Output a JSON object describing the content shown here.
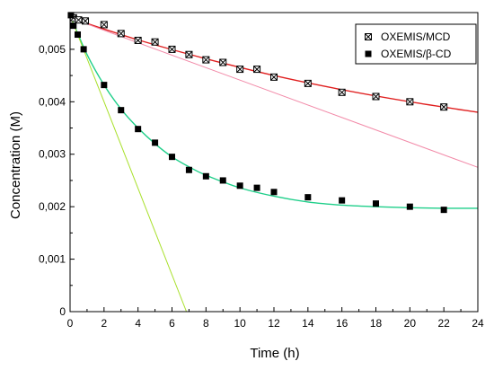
{
  "chart_data": {
    "type": "scatter",
    "title": "",
    "xlabel": "Time (h)",
    "ylabel": "Concentration (M)",
    "xlim": [
      0,
      24
    ],
    "ylim": [
      0,
      0.0057
    ],
    "xticks": [
      0,
      2,
      4,
      6,
      8,
      10,
      12,
      14,
      16,
      18,
      20,
      22,
      24
    ],
    "xtick_labels": [
      "0",
      "2",
      "4",
      "6",
      "8",
      "10",
      "12",
      "14",
      "16",
      "18",
      "20",
      "22",
      "24"
    ],
    "yticks": [
      0,
      0.001,
      0.002,
      0.003,
      0.004,
      0.005
    ],
    "ytick_labels": [
      "0",
      "0,001",
      "0,002",
      "0,003",
      "0,004",
      "0,005"
    ],
    "grid": false,
    "legend_position": "top-right",
    "legend": [
      "OXEMIS/MCD",
      "OXEMIS/β-CD"
    ],
    "series": [
      {
        "name": "OXEMIS/MCD",
        "marker": "square-crossed",
        "color": "#000000",
        "x": [
          0.2,
          0.5,
          0.9,
          2.0,
          3.0,
          4.0,
          5.0,
          6.0,
          7.0,
          8.0,
          9.0,
          10.0,
          11.0,
          12.0,
          14.0,
          16.0,
          18.0,
          20.0,
          22.0
        ],
        "y": [
          0.0056,
          0.00556,
          0.00554,
          0.00547,
          0.0053,
          0.00517,
          0.00514,
          0.005,
          0.0049,
          0.0048,
          0.00475,
          0.00462,
          0.00462,
          0.00447,
          0.00435,
          0.00418,
          0.0041,
          0.004,
          0.0039
        ]
      },
      {
        "name": "OXEMIS/β-CD",
        "marker": "square-filled",
        "color": "#000000",
        "x": [
          0.05,
          0.2,
          0.45,
          0.8,
          2.0,
          3.0,
          4.0,
          5.0,
          6.0,
          7.0,
          8.0,
          9.0,
          10.0,
          11.0,
          12.0,
          14.0,
          16.0,
          18.0,
          20.0,
          22.0
        ],
        "y": [
          0.00565,
          0.00545,
          0.00528,
          0.005,
          0.00432,
          0.00384,
          0.00348,
          0.00322,
          0.00295,
          0.0027,
          0.00258,
          0.0025,
          0.0024,
          0.00236,
          0.00228,
          0.00218,
          0.00212,
          0.00206,
          0.002,
          0.00194
        ]
      }
    ],
    "fit_lines": [
      {
        "series": "OXEMIS/MCD",
        "kind": "curve",
        "color": "#e02020",
        "x": [
          0,
          4,
          8,
          12,
          16,
          20,
          24
        ],
        "y": [
          0.0056,
          0.00518,
          0.00482,
          0.0045,
          0.00423,
          0.004,
          0.0038
        ]
      },
      {
        "series": "OXEMIS/MCD",
        "kind": "initial-slope",
        "color": "#f28aa8",
        "x": [
          0,
          24
        ],
        "y": [
          0.0056,
          0.00275
        ]
      },
      {
        "series": "OXEMIS/β-CD",
        "kind": "curve",
        "color": "#1fcf8a",
        "x": [
          0,
          1,
          2,
          3,
          4,
          5,
          6,
          7,
          8,
          10,
          12,
          14,
          16,
          18,
          20,
          22,
          24
        ],
        "y": [
          0.00565,
          0.0049,
          0.00432,
          0.00386,
          0.0035,
          0.0032,
          0.00295,
          0.00276,
          0.0026,
          0.00236,
          0.0022,
          0.00209,
          0.00203,
          0.002,
          0.00198,
          0.00197,
          0.00197
        ]
      },
      {
        "series": "OXEMIS/β-CD",
        "kind": "initial-slope",
        "color": "#a8e02a",
        "x": [
          0,
          6.85
        ],
        "y": [
          0.00565,
          0.0
        ]
      }
    ]
  }
}
